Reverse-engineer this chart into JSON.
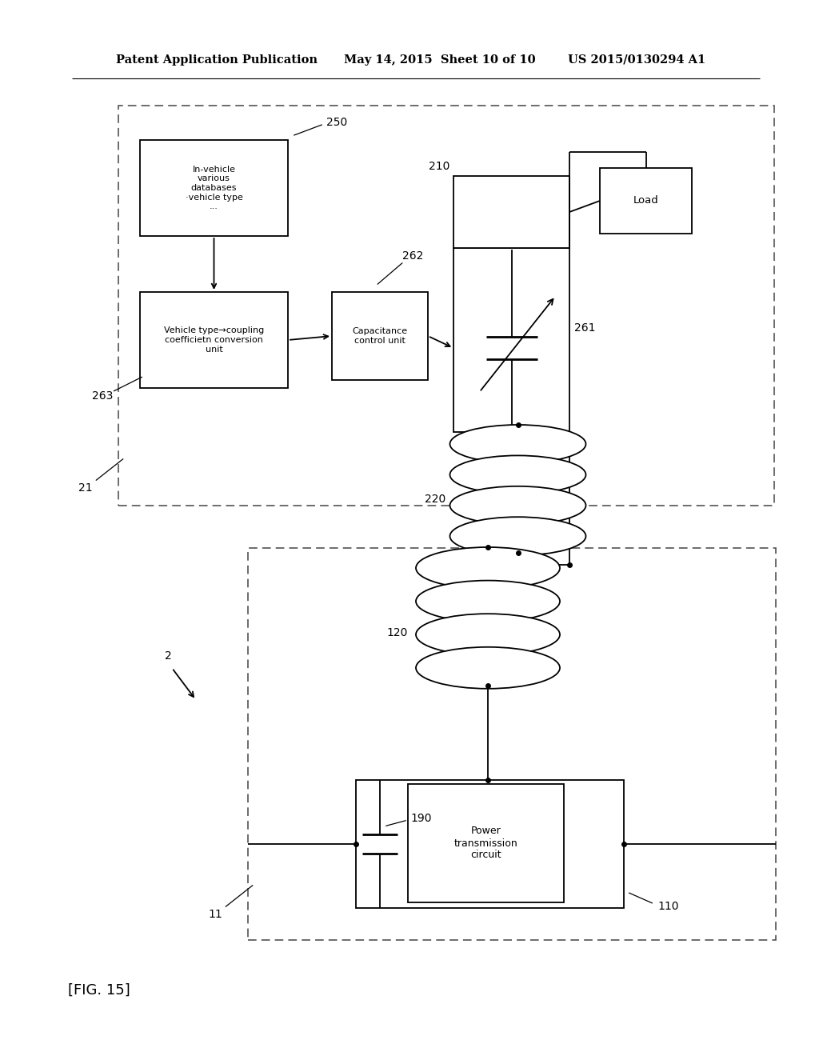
{
  "bg_color": "#ffffff",
  "line_color": "#000000",
  "header_text_left": "Patent Application Publication",
  "header_text_mid": "May 14, 2015  Sheet 10 of 10",
  "header_text_right": "US 2015/0130294 A1",
  "fig_label": "[FIG. 15]"
}
